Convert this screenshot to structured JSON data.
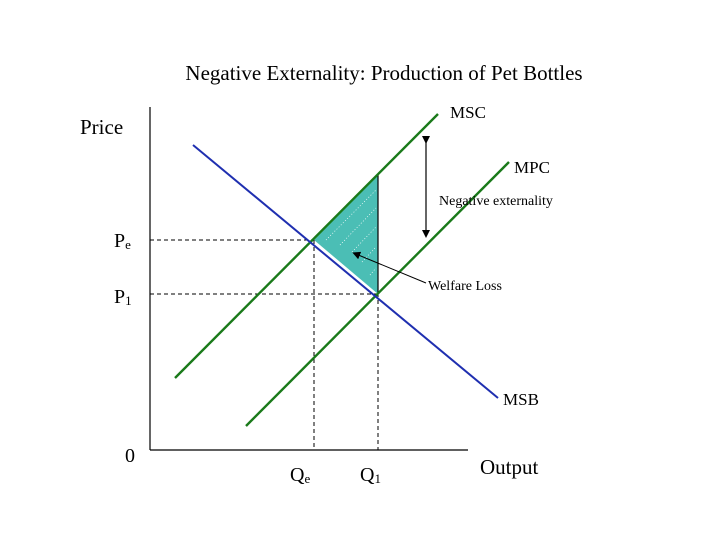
{
  "title": "Negative Externality: Production of Pet Bottles",
  "axes": {
    "y_label": "Price",
    "x_label": "Output",
    "origin_label": "0"
  },
  "ticks": {
    "pe_main": "P",
    "pe_sub": "e",
    "p1_main": "P",
    "p1_sub": "1",
    "qe_main": "Q",
    "qe_sub": "e",
    "q1_main": "Q",
    "q1_sub": "1"
  },
  "curves": {
    "msc": "MSC",
    "mpc": "MPC",
    "msb": "MSB"
  },
  "annotations": {
    "externality": "Negative externality",
    "welfare_loss": "Welfare Loss"
  },
  "colors": {
    "supply": "#1a7a1a",
    "demand": "#1f2fb0",
    "shade": "#2bb3a8",
    "axis": "#000000"
  },
  "chart_data": {
    "type": "line",
    "title": "Negative Externality: Production of Pet Bottles",
    "xlabel": "Output",
    "ylabel": "Price",
    "series": [
      {
        "name": "MSC",
        "points": [
          [
            0.5,
            1.6
          ],
          [
            5.8,
            7.3
          ]
        ]
      },
      {
        "name": "MPC",
        "points": [
          [
            2.1,
            0.5
          ],
          [
            7.1,
            5.8
          ]
        ]
      },
      {
        "name": "MSB",
        "points": [
          [
            0.9,
            6.4
          ],
          [
            6.7,
            1.1
          ]
        ]
      }
    ],
    "equilibria": {
      "social_optimum": {
        "q_label": "Qe",
        "p_label": "Pe",
        "q": 3.2,
        "p": 4.5
      },
      "market": {
        "q_label": "Q1",
        "p_label": "P1",
        "q": 4.4,
        "p": 3.3
      }
    },
    "shaded_region": "Welfare Loss",
    "externality_gap": "Negative externality"
  }
}
